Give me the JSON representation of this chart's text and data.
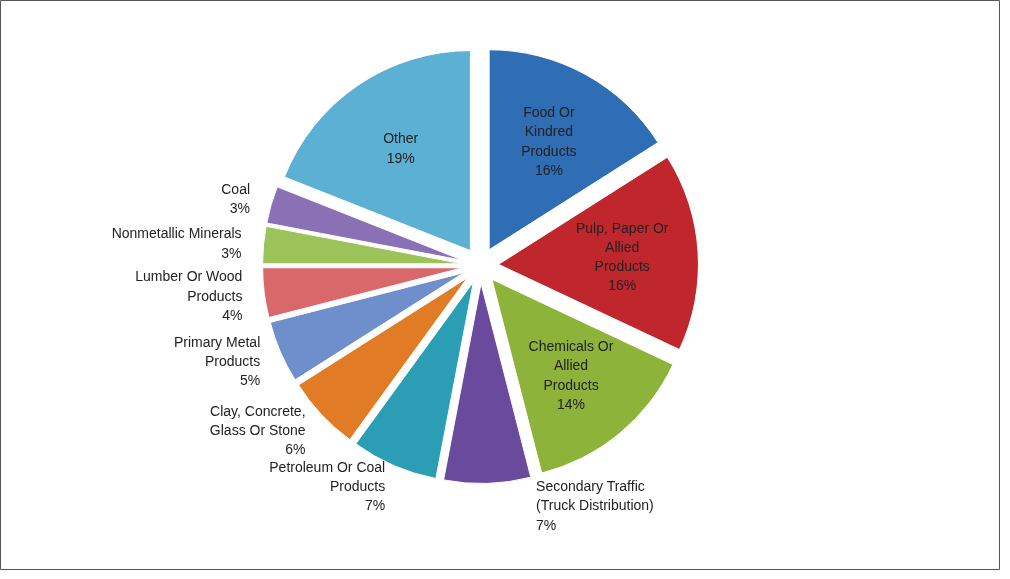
{
  "chart_data": {
    "type": "pie",
    "categories": [
      "Food Or Kindred Products",
      "Pulp, Paper Or Allied Products",
      "Chemicals Or Allied Products",
      "Secondary Traffic (Truck Distribution)",
      "Petroleum Or Coal Products",
      "Clay, Concrete, Glass Or Stone",
      "Primary Metal Products",
      "Lumber Or Wood Products",
      "Nonmetallic Minerals",
      "Coal",
      "Other"
    ],
    "values": [
      16,
      16,
      14,
      7,
      7,
      6,
      5,
      4,
      3,
      3,
      19
    ],
    "value_labels": [
      "16%",
      "16%",
      "14%",
      "7%",
      "7%",
      "6%",
      "5%",
      "4%",
      "3%",
      "3%",
      "19%"
    ],
    "colors": [
      "#2f6db5",
      "#c0272d",
      "#8db33a",
      "#6a4a9c",
      "#2b9db5",
      "#e27b26",
      "#6f8fcc",
      "#d9686a",
      "#9bc35a",
      "#8a70b5",
      "#5bb0d3"
    ]
  }
}
